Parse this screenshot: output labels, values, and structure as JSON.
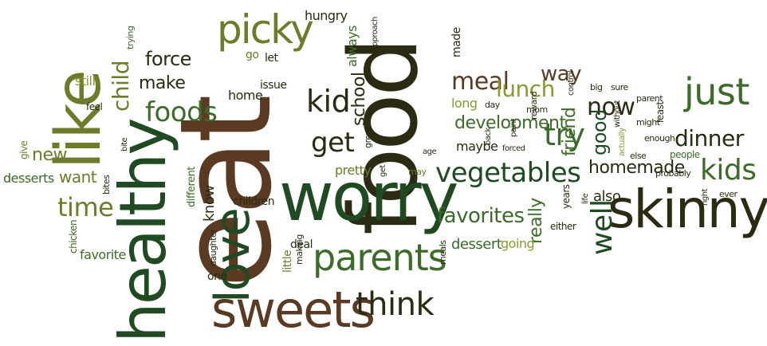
{
  "colors": {
    "dark_green": "#1f4a22",
    "green": "#3d6b2a",
    "olive": "#6f7a2a",
    "khaki": "#a59a4a",
    "brown": "#5a3a22",
    "dark": "#2b2a12",
    "yellow_green": "#8a9a30"
  },
  "words": [
    {
      "text": "eat"
    },
    {
      "text": "food"
    },
    {
      "text": "worry"
    },
    {
      "text": "healthy"
    },
    {
      "text": "like"
    },
    {
      "text": "love"
    },
    {
      "text": "skinny"
    },
    {
      "text": "sweets"
    },
    {
      "text": "picky"
    },
    {
      "text": "parents"
    },
    {
      "text": "just"
    },
    {
      "text": "vegetables"
    },
    {
      "text": "foods"
    },
    {
      "text": "child"
    },
    {
      "text": "think"
    },
    {
      "text": "kid"
    },
    {
      "text": "kids"
    },
    {
      "text": "try"
    },
    {
      "text": "get"
    },
    {
      "text": "meal"
    },
    {
      "text": "lunch"
    },
    {
      "text": "dinner"
    },
    {
      "text": "well"
    },
    {
      "text": "now"
    },
    {
      "text": "way"
    },
    {
      "text": "favorites"
    },
    {
      "text": "development"
    },
    {
      "text": "homemade"
    },
    {
      "text": "force"
    },
    {
      "text": "make"
    },
    {
      "text": "time"
    },
    {
      "text": "school"
    },
    {
      "text": "friend"
    },
    {
      "text": "good"
    },
    {
      "text": "really"
    },
    {
      "text": "new"
    },
    {
      "text": "want"
    },
    {
      "text": "desserts"
    },
    {
      "text": "favorite"
    },
    {
      "text": "still"
    },
    {
      "text": "hungry"
    },
    {
      "text": "always"
    },
    {
      "text": "made"
    },
    {
      "text": "go"
    },
    {
      "text": "let"
    },
    {
      "text": "home"
    },
    {
      "text": "issue"
    },
    {
      "text": "know"
    },
    {
      "text": "children"
    },
    {
      "text": "pretty"
    },
    {
      "text": "dessert"
    },
    {
      "text": "going"
    },
    {
      "text": "also"
    },
    {
      "text": "long"
    },
    {
      "text": "maybe"
    },
    {
      "text": "deal"
    },
    {
      "text": "little"
    },
    {
      "text": "one"
    },
    {
      "text": "give"
    },
    {
      "text": "feel"
    },
    {
      "text": "different"
    },
    {
      "text": "chicken"
    },
    {
      "text": "bites"
    },
    {
      "text": "daughter"
    },
    {
      "text": "making"
    },
    {
      "text": "meals"
    },
    {
      "text": "either"
    },
    {
      "text": "grew"
    },
    {
      "text": "age"
    },
    {
      "text": "lot"
    },
    {
      "text": "may"
    },
    {
      "text": "get"
    },
    {
      "text": "back"
    },
    {
      "text": "forced"
    },
    {
      "text": "paint"
    },
    {
      "text": "years"
    },
    {
      "text": "life"
    },
    {
      "text": "reward"
    },
    {
      "text": "day"
    },
    {
      "text": "mom"
    },
    {
      "text": "control"
    },
    {
      "text": "big"
    },
    {
      "text": "sure"
    },
    {
      "text": "without"
    },
    {
      "text": "actually"
    },
    {
      "text": "parent"
    },
    {
      "text": "might"
    },
    {
      "text": "least"
    },
    {
      "text": "enough"
    },
    {
      "text": "else"
    },
    {
      "text": "people"
    },
    {
      "text": "probably"
    },
    {
      "text": "right"
    },
    {
      "text": "ever"
    },
    {
      "text": "trying"
    },
    {
      "text": "approach"
    },
    {
      "text": "bite"
    }
  ]
}
